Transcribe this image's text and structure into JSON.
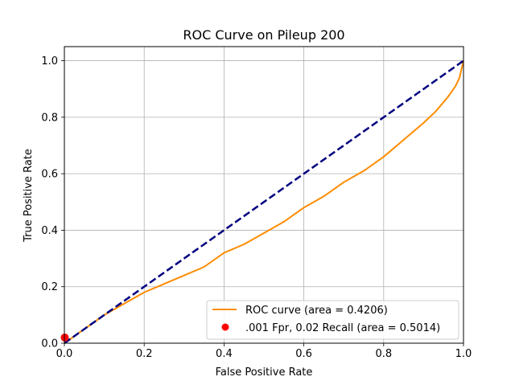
{
  "chart_data": {
    "type": "line",
    "title": "ROC Curve on Pileup 200",
    "xlabel": "False Positive Rate",
    "ylabel": "True Positive Rate",
    "xlim": [
      0,
      1
    ],
    "ylim": [
      0,
      1.05
    ],
    "xticks": [
      0,
      0.2,
      0.4,
      0.6,
      0.8,
      1
    ],
    "xtick_labels": [
      "0.0",
      "0.2",
      "0.4",
      "0.6",
      "0.8",
      "1.0"
    ],
    "yticks": [
      0,
      0.2,
      0.4,
      0.6,
      0.8,
      1
    ],
    "ytick_labels": [
      "0.0",
      "0.2",
      "0.4",
      "0.6",
      "0.8",
      "1.0"
    ],
    "grid": true,
    "legend_position": "lower-right",
    "series": [
      {
        "name": "ROC curve (area = 0.4206)",
        "kind": "line",
        "color": "#ff8c00",
        "x": [
          0,
          0.02,
          0.05,
          0.1,
          0.15,
          0.2,
          0.25,
          0.3,
          0.35,
          0.4,
          0.45,
          0.5,
          0.55,
          0.6,
          0.65,
          0.7,
          0.75,
          0.8,
          0.85,
          0.9,
          0.93,
          0.96,
          0.98,
          0.99,
          1.0
        ],
        "y": [
          0,
          0.02,
          0.05,
          0.1,
          0.14,
          0.18,
          0.21,
          0.24,
          0.27,
          0.32,
          0.35,
          0.39,
          0.43,
          0.48,
          0.52,
          0.57,
          0.61,
          0.66,
          0.72,
          0.78,
          0.82,
          0.87,
          0.91,
          0.94,
          1.0
        ]
      },
      {
        "kind": "dashed-line",
        "color": "#000080",
        "x": [
          0,
          1
        ],
        "y": [
          0,
          1
        ]
      },
      {
        "name": ".001 Fpr, 0.02 Recall (area = 0.5014)",
        "kind": "point",
        "color": "#ff0000",
        "x": [
          0.001
        ],
        "y": [
          0.02
        ]
      }
    ]
  }
}
